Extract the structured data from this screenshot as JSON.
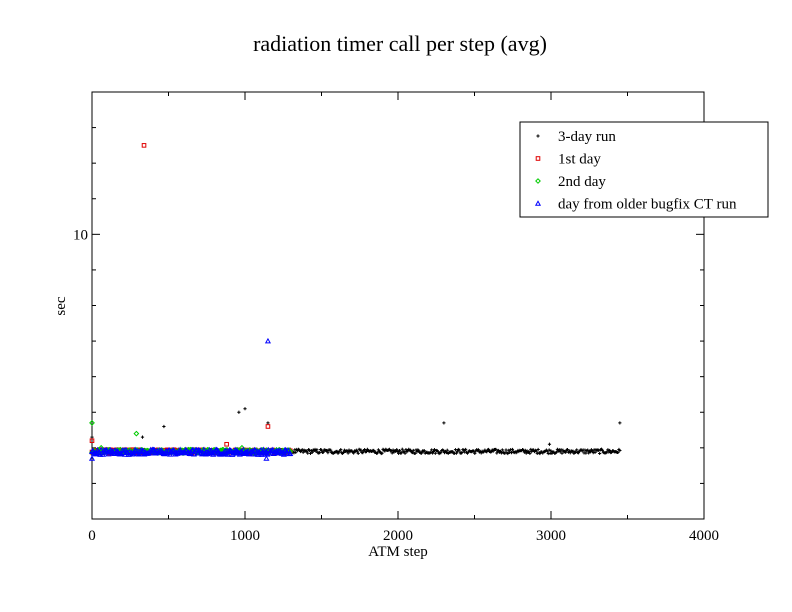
{
  "chart_data": {
    "type": "scatter",
    "title": "radiation timer call per step (avg)",
    "xlabel": "ATM step",
    "ylabel": "sec",
    "xlim": [
      0,
      4000
    ],
    "ylim": [
      2,
      14
    ],
    "x_ticks": [
      0,
      1000,
      2000,
      3000,
      4000
    ],
    "x_tick_labels": [
      "0",
      "1000",
      "2000",
      "3000",
      "4000"
    ],
    "y_ticks": [
      10
    ],
    "y_tick_labels": [
      "10"
    ],
    "y_minor_ticks": [
      3,
      4,
      5,
      6,
      7,
      8,
      9,
      11,
      12,
      13
    ],
    "legend_position": "top-right",
    "series": [
      {
        "name": "3-day run",
        "color": "#000000",
        "marker": "plus",
        "baseline": {
          "x_start": 0,
          "x_end": 3450,
          "y": 3.9,
          "noise": 0.06
        },
        "outliers": [
          [
            0,
            4.3
          ],
          [
            330,
            4.3
          ],
          [
            470,
            4.6
          ],
          [
            960,
            5.0
          ],
          [
            1000,
            5.1
          ],
          [
            1150,
            4.7
          ],
          [
            2300,
            4.7
          ],
          [
            2990,
            4.1
          ],
          [
            3450,
            4.7
          ]
        ]
      },
      {
        "name": "1st day",
        "color": "#e00000",
        "marker": "square",
        "baseline": {
          "x_start": 0,
          "x_end": 1300,
          "y": 3.9,
          "noise": 0.05
        },
        "outliers": [
          [
            0,
            4.2
          ],
          [
            340,
            12.5
          ],
          [
            710,
            3.85
          ],
          [
            880,
            4.1
          ],
          [
            1150,
            4.6
          ]
        ]
      },
      {
        "name": "2nd day",
        "color": "#00cc00",
        "marker": "diamond",
        "baseline": {
          "x_start": 0,
          "x_end": 1300,
          "y": 3.9,
          "noise": 0.05
        },
        "outliers": [
          [
            0,
            4.7
          ],
          [
            60,
            4.0
          ],
          [
            290,
            4.4
          ],
          [
            980,
            4.0
          ]
        ]
      },
      {
        "name": "day from older bugfix CT run",
        "color": "#0000ff",
        "marker": "triangle",
        "baseline": {
          "x_start": 0,
          "x_end": 1300,
          "y": 3.88,
          "noise": 0.07
        },
        "outliers": [
          [
            0,
            3.7
          ],
          [
            1140,
            3.7
          ],
          [
            1150,
            7.0
          ]
        ]
      }
    ]
  }
}
